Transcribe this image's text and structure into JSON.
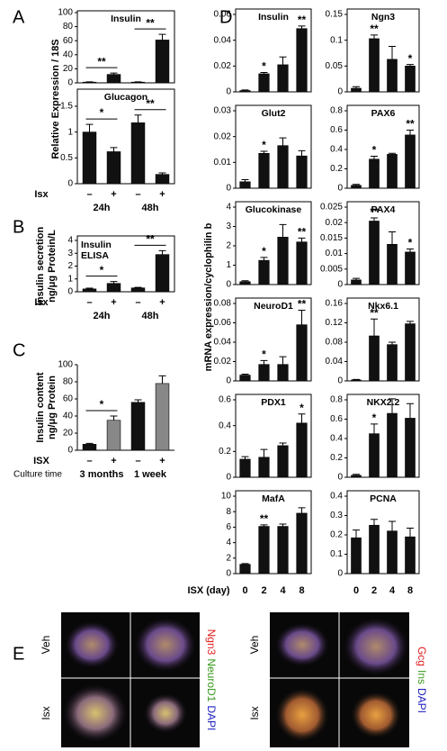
{
  "panel_labels": [
    "A",
    "B",
    "C",
    "D",
    "E"
  ],
  "panel_a": {
    "ylabel": "Relative Expression / 18S"
  },
  "panel_d": {
    "ylabel": "mRNA expression/cyclophilin b",
    "xlabel": "ISX (day)",
    "categories": [
      "0",
      "2",
      "4",
      "8"
    ]
  },
  "panel_e": {
    "conditions": [
      "Veh",
      "Isx"
    ],
    "left_stains": [
      "Ngn3",
      "NeuroD1",
      "DAPI"
    ],
    "right_stains": [
      "Gcg",
      "Ins",
      "DAPI"
    ],
    "stain_colors": [
      "#e02020",
      "#3a9a20",
      "#2020c0"
    ]
  },
  "chart_data": [
    {
      "type": "bar",
      "title": "Insulin",
      "values": [
        1,
        12,
        1,
        61
      ],
      "errors": [
        0.5,
        2,
        0.5,
        8
      ],
      "ylim": [
        0,
        100
      ],
      "yticks": [
        0,
        20,
        40,
        60,
        80,
        100
      ],
      "color": "#111",
      "pair_significance": [
        "**",
        "**"
      ]
    },
    {
      "type": "bar",
      "title": "Glucagon",
      "values": [
        1.0,
        0.62,
        1.18,
        0.18
      ],
      "errors": [
        0.15,
        0.08,
        0.15,
        0.03
      ],
      "ylim": [
        0,
        1.5
      ],
      "yticks": [
        0,
        0.5,
        1,
        1.5
      ],
      "color": "#111",
      "pair_significance": [
        "*",
        "**"
      ],
      "xlabel": "Isx",
      "categories": [
        "–",
        "+",
        "–",
        "+"
      ],
      "groups": [
        "24h",
        "48h"
      ]
    },
    {
      "type": "bar",
      "title": [
        "Insulin",
        "ELISA"
      ],
      "ylabel": [
        "Insulin secretion",
        "ng/μg Protein/L"
      ],
      "values": [
        0.22,
        0.65,
        0.3,
        2.9
      ],
      "errors": [
        0.06,
        0.15,
        0.04,
        0.3
      ],
      "ylim": [
        0,
        4
      ],
      "yticks": [
        0,
        1,
        2,
        3,
        4
      ],
      "color": "#111",
      "pair_significance": [
        "*",
        "**"
      ],
      "xlabel": "Isx",
      "categories": [
        "–",
        "+",
        "–",
        "+"
      ],
      "groups": [
        "24h",
        "48h"
      ]
    },
    {
      "type": "bar",
      "ylabel": [
        "Insulin content",
        "ng/μg Protein"
      ],
      "values": [
        7,
        35,
        56,
        78
      ],
      "errors": [
        1,
        5,
        3,
        9
      ],
      "ylim": [
        0,
        100
      ],
      "yticks": [
        0,
        20,
        40,
        60,
        80,
        100
      ],
      "colors": [
        "#111",
        "#888",
        "#111",
        "#888"
      ],
      "pair_significance": [
        "*",
        null
      ],
      "xlabel": "ISX",
      "categories": [
        "–",
        "+",
        "–",
        "+"
      ],
      "group_label": "Culture time",
      "groups": [
        "3 months",
        "1 week"
      ]
    },
    {
      "type": "bar",
      "title": "Insulin",
      "values": [
        0.001,
        0.014,
        0.021,
        0.049
      ],
      "errors": [
        0.0005,
        0.001,
        0.006,
        0.002
      ],
      "ylim": [
        0,
        0.06
      ],
      "yticks": [
        0,
        0.02,
        0.04,
        0.06
      ],
      "color": "#111",
      "significance": [
        null,
        "*",
        null,
        "**"
      ]
    },
    {
      "type": "bar",
      "title": "Glut2",
      "values": [
        0.0025,
        0.0135,
        0.0165,
        0.0125
      ],
      "errors": [
        0.0008,
        0.0008,
        0.003,
        0.002
      ],
      "ylim": [
        0,
        0.03
      ],
      "yticks": [
        0,
        0.01,
        0.02,
        0.03
      ],
      "color": "#111",
      "significance": [
        null,
        "*",
        null,
        null
      ]
    },
    {
      "type": "bar",
      "title": "Glucokinase",
      "values": [
        0.15,
        1.25,
        2.45,
        2.2
      ],
      "errors": [
        0.05,
        0.15,
        0.65,
        0.2
      ],
      "ylim": [
        0,
        4
      ],
      "yticks": [
        0,
        1,
        2,
        3,
        4
      ],
      "color": "#111",
      "significance": [
        null,
        "*",
        null,
        "**"
      ]
    },
    {
      "type": "bar",
      "title": "NeuroD1",
      "values": [
        0.006,
        0.017,
        0.017,
        0.058
      ],
      "errors": [
        0.001,
        0.004,
        0.008,
        0.015
      ],
      "ylim": [
        0,
        0.08
      ],
      "yticks": [
        0,
        0.02,
        0.04,
        0.06,
        0.08
      ],
      "color": "#111",
      "significance": [
        null,
        "*",
        null,
        "**"
      ]
    },
    {
      "type": "bar",
      "title": "PDX1",
      "values": [
        0.14,
        0.155,
        0.245,
        0.42
      ],
      "errors": [
        0.02,
        0.06,
        0.02,
        0.07
      ],
      "ylim": [
        0,
        0.6
      ],
      "yticks": [
        0,
        0.2,
        0.4,
        0.6
      ],
      "color": "#111",
      "significance": [
        null,
        null,
        null,
        "*"
      ]
    },
    {
      "type": "bar",
      "title": "MafA",
      "values": [
        1.2,
        6.1,
        6.1,
        7.8
      ],
      "errors": [
        0.1,
        0.2,
        0.3,
        0.7
      ],
      "ylim": [
        0,
        10
      ],
      "yticks": [
        0,
        2,
        4,
        6,
        8,
        10
      ],
      "color": "#111",
      "significance": [
        null,
        "**",
        null,
        null
      ]
    },
    {
      "type": "bar",
      "title": "Ngn3",
      "values": [
        0.007,
        0.103,
        0.063,
        0.05
      ],
      "errors": [
        0.003,
        0.007,
        0.025,
        0.003
      ],
      "ylim": [
        0,
        0.15
      ],
      "yticks": [
        0,
        0.05,
        0.1,
        0.15
      ],
      "color": "#111",
      "significance": [
        null,
        "**",
        null,
        "*"
      ]
    },
    {
      "type": "bar",
      "title": "PAX6",
      "values": [
        0.03,
        0.3,
        0.35,
        0.55
      ],
      "errors": [
        0.01,
        0.03,
        0.01,
        0.05
      ],
      "ylim": [
        0,
        0.8
      ],
      "yticks": [
        0,
        0.2,
        0.4,
        0.6,
        0.8
      ],
      "color": "#111",
      "significance": [
        null,
        "*",
        null,
        "**"
      ]
    },
    {
      "type": "bar",
      "title": "PAX4",
      "values": [
        0.0015,
        0.0205,
        0.013,
        0.0105
      ],
      "errors": [
        0.0005,
        0.001,
        0.004,
        0.001
      ],
      "ylim": [
        0,
        0.025
      ],
      "yticks": [
        0,
        0.005,
        0.01,
        0.015,
        0.02,
        0.025
      ],
      "color": "#111",
      "significance": [
        null,
        "**",
        null,
        "*"
      ]
    },
    {
      "type": "bar",
      "title": "Nkx6.1",
      "values": [
        0.002,
        0.093,
        0.075,
        0.118
      ],
      "errors": [
        0.001,
        0.035,
        0.005,
        0.005
      ],
      "ylim": [
        0,
        0.16
      ],
      "yticks": [
        0,
        0.04,
        0.08,
        0.12,
        0.16
      ],
      "color": "#111",
      "significance": [
        null,
        "**",
        null,
        null
      ]
    },
    {
      "type": "bar",
      "title": "NKX2.2",
      "values": [
        0.02,
        0.45,
        0.66,
        0.61
      ],
      "errors": [
        0.01,
        0.1,
        0.15,
        0.15
      ],
      "ylim": [
        0,
        0.8
      ],
      "yticks": [
        0,
        0.2,
        0.4,
        0.6,
        0.8
      ],
      "color": "#111",
      "significance": [
        null,
        "*",
        null,
        null
      ]
    },
    {
      "type": "bar",
      "title": "PCNA",
      "values": [
        0.185,
        0.25,
        0.22,
        0.19
      ],
      "errors": [
        0.04,
        0.03,
        0.05,
        0.045
      ],
      "ylim": [
        0,
        0.4
      ],
      "yticks": [
        0,
        0.1,
        0.2,
        0.3,
        0.4
      ],
      "color": "#111",
      "significance": [
        null,
        null,
        null,
        null
      ]
    }
  ]
}
